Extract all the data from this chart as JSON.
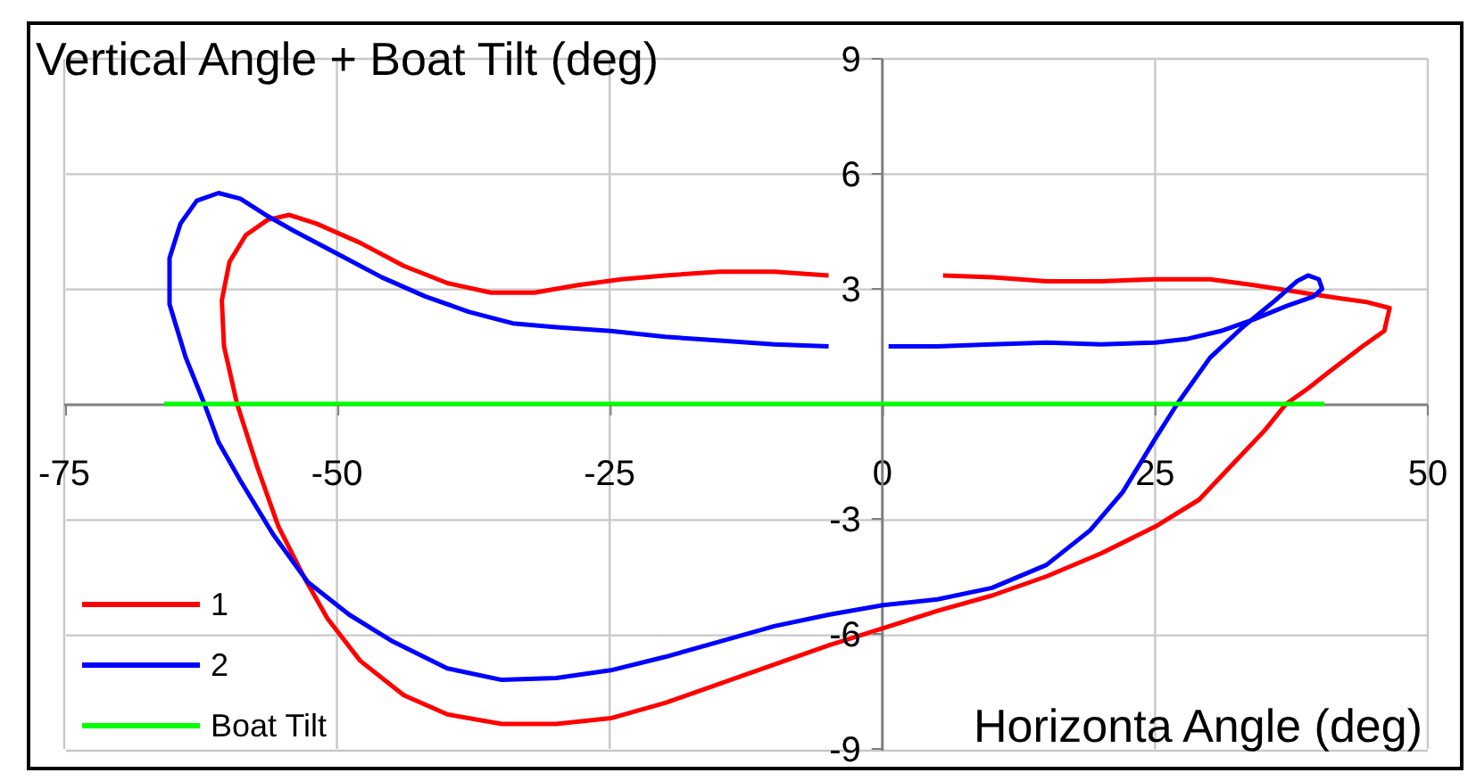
{
  "chart_data": {
    "type": "line",
    "ylabel": "Vertical Angle + Boat Tilt (deg)",
    "xlabel": "Horizonta Angle (deg)",
    "xlim": [
      -75,
      50
    ],
    "xticks": [
      -75,
      -50,
      -25,
      0,
      25,
      50
    ],
    "ylim": [
      -9,
      9
    ],
    "yticks": [
      -9,
      -6,
      -3,
      3,
      6,
      9
    ],
    "grid": true,
    "legend": "bottom left",
    "marker": "none",
    "line_style": "solid",
    "series": [
      {
        "name": "1",
        "color": "#ff0000",
        "x": [
          5.5,
          10,
          15,
          20,
          25,
          30,
          34,
          39,
          42,
          44.5,
          46.5,
          46,
          44,
          41,
          39,
          37,
          35,
          32,
          29,
          25,
          20,
          15,
          10,
          5,
          0,
          -5,
          -10,
          -15,
          -20,
          -25,
          -30,
          -35,
          -40,
          -44,
          -48,
          -51,
          -53,
          -55.5,
          -57.5,
          -59.3,
          -60.5,
          -60.7,
          -60,
          -58.5,
          -56.5,
          -54.5,
          -52,
          -48,
          -44,
          -40,
          -36,
          -32,
          -28,
          -24,
          -20,
          -15,
          -10,
          -5
        ],
        "values": [
          3.35,
          3.3,
          3.2,
          3.2,
          3.25,
          3.25,
          3.1,
          2.88,
          2.75,
          2.65,
          2.5,
          1.9,
          1.5,
          0.85,
          0.4,
          0,
          -0.7,
          -1.6,
          -2.5,
          -3.2,
          -3.9,
          -4.5,
          -5.0,
          -5.4,
          -5.85,
          -6.3,
          -6.8,
          -7.3,
          -7.8,
          -8.2,
          -8.35,
          -8.35,
          -8.1,
          -7.6,
          -6.7,
          -5.6,
          -4.6,
          -3.2,
          -1.6,
          0,
          1.5,
          2.7,
          3.7,
          4.4,
          4.8,
          4.93,
          4.7,
          4.2,
          3.6,
          3.15,
          2.9,
          2.9,
          3.1,
          3.25,
          3.35,
          3.45,
          3.45,
          3.35
        ]
      },
      {
        "name": "2",
        "color": "#0000ff",
        "x": [
          0.5,
          5,
          10,
          15,
          20,
          25,
          28,
          31,
          34,
          37,
          39.5,
          40.3,
          40,
          39,
          38,
          36,
          33,
          30,
          27,
          25,
          22,
          19,
          15,
          10,
          5,
          0,
          -5,
          -10,
          -15,
          -20,
          -25,
          -30,
          -35,
          -40,
          -45,
          -49,
          -52.8,
          -56,
          -59,
          -61,
          -62.3,
          -64,
          -65.5,
          -65.5,
          -64.5,
          -63,
          -61,
          -59,
          -56.5,
          -54,
          -50,
          -46,
          -42,
          -38,
          -34,
          -30,
          -25,
          -20,
          -15,
          -10,
          -5
        ],
        "values": [
          1.5,
          1.5,
          1.55,
          1.6,
          1.55,
          1.6,
          1.7,
          1.9,
          2.2,
          2.55,
          2.8,
          3.0,
          3.25,
          3.35,
          3.2,
          2.7,
          2.0,
          1.2,
          0,
          -0.9,
          -2.3,
          -3.3,
          -4.2,
          -4.8,
          -5.1,
          -5.25,
          -5.5,
          -5.8,
          -6.2,
          -6.6,
          -6.95,
          -7.15,
          -7.2,
          -6.9,
          -6.2,
          -5.5,
          -4.65,
          -3.4,
          -2.0,
          -1.0,
          0,
          1.2,
          2.6,
          3.8,
          4.7,
          5.3,
          5.5,
          5.35,
          4.9,
          4.5,
          3.9,
          3.3,
          2.8,
          2.4,
          2.1,
          2.0,
          1.9,
          1.75,
          1.65,
          1.55,
          1.5
        ]
      },
      {
        "name": "Boat Tilt",
        "color": "#00ff00",
        "x": [
          -66,
          40.5
        ],
        "values": [
          0,
          0
        ]
      }
    ]
  }
}
